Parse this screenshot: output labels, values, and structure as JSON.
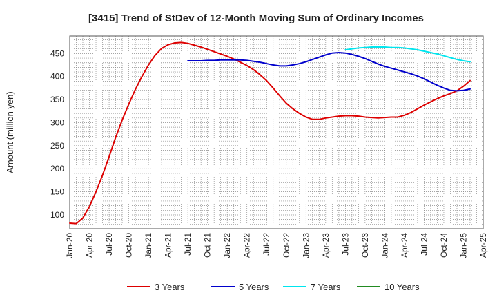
{
  "chart_data": {
    "type": "line",
    "title": "[3415]  Trend of StDev of 12-Month Moving Sum of Ordinary Incomes",
    "ylabel": "Amount (million yen)",
    "xlabel": "",
    "ylim": [
      70,
      488
    ],
    "yticks": [
      100,
      150,
      200,
      250,
      300,
      350,
      400,
      450
    ],
    "xticks": [
      "Jan-20",
      "Apr-20",
      "Jul-20",
      "Oct-20",
      "Jan-21",
      "Apr-21",
      "Jul-21",
      "Oct-21",
      "Jan-22",
      "Apr-22",
      "Jul-22",
      "Oct-22",
      "Jan-23",
      "Apr-23",
      "Jul-23",
      "Oct-23",
      "Jan-24",
      "Apr-24",
      "Jul-24",
      "Oct-24",
      "Jan-25",
      "Apr-25"
    ],
    "grid": true,
    "legend_position": "bottom",
    "series": [
      {
        "name": "3 Years",
        "color": "#dd0000",
        "points": [
          [
            "2020-01",
            82
          ],
          [
            "2020-02",
            81
          ],
          [
            "2020-03",
            93
          ],
          [
            "2020-04",
            118
          ],
          [
            "2020-05",
            150
          ],
          [
            "2020-06",
            186
          ],
          [
            "2020-07",
            226
          ],
          [
            "2020-08",
            268
          ],
          [
            "2020-09",
            306
          ],
          [
            "2020-10",
            340
          ],
          [
            "2020-11",
            372
          ],
          [
            "2020-12",
            400
          ],
          [
            "2021-01",
            425
          ],
          [
            "2021-02",
            446
          ],
          [
            "2021-03",
            461
          ],
          [
            "2021-04",
            469
          ],
          [
            "2021-05",
            473
          ],
          [
            "2021-06",
            474
          ],
          [
            "2021-07",
            472
          ],
          [
            "2021-08",
            468
          ],
          [
            "2021-09",
            464
          ],
          [
            "2021-10",
            459
          ],
          [
            "2021-11",
            454
          ],
          [
            "2021-12",
            449
          ],
          [
            "2022-01",
            444
          ],
          [
            "2022-02",
            438
          ],
          [
            "2022-03",
            431
          ],
          [
            "2022-04",
            424
          ],
          [
            "2022-05",
            415
          ],
          [
            "2022-06",
            404
          ],
          [
            "2022-07",
            391
          ],
          [
            "2022-08",
            375
          ],
          [
            "2022-09",
            358
          ],
          [
            "2022-10",
            342
          ],
          [
            "2022-11",
            330
          ],
          [
            "2022-12",
            320
          ],
          [
            "2023-01",
            312
          ],
          [
            "2023-02",
            307
          ],
          [
            "2023-03",
            307
          ],
          [
            "2023-04",
            310
          ],
          [
            "2023-05",
            312
          ],
          [
            "2023-06",
            314
          ],
          [
            "2023-07",
            315
          ],
          [
            "2023-08",
            315
          ],
          [
            "2023-09",
            314
          ],
          [
            "2023-10",
            312
          ],
          [
            "2023-11",
            311
          ],
          [
            "2023-12",
            310
          ],
          [
            "2024-01",
            311
          ],
          [
            "2024-02",
            312
          ],
          [
            "2024-03",
            312
          ],
          [
            "2024-04",
            316
          ],
          [
            "2024-05",
            322
          ],
          [
            "2024-06",
            330
          ],
          [
            "2024-07",
            338
          ],
          [
            "2024-08",
            345
          ],
          [
            "2024-09",
            352
          ],
          [
            "2024-10",
            358
          ],
          [
            "2024-11",
            363
          ],
          [
            "2024-12",
            369
          ],
          [
            "2025-01",
            379
          ],
          [
            "2025-02",
            391
          ]
        ]
      },
      {
        "name": "5 Years",
        "color": "#0000cc",
        "points": [
          [
            "2021-07",
            434
          ],
          [
            "2021-08",
            434
          ],
          [
            "2021-09",
            434
          ],
          [
            "2021-10",
            435
          ],
          [
            "2021-11",
            435
          ],
          [
            "2021-12",
            436
          ],
          [
            "2022-01",
            436
          ],
          [
            "2022-02",
            436
          ],
          [
            "2022-03",
            436
          ],
          [
            "2022-04",
            435
          ],
          [
            "2022-05",
            433
          ],
          [
            "2022-06",
            431
          ],
          [
            "2022-07",
            428
          ],
          [
            "2022-08",
            425
          ],
          [
            "2022-09",
            423
          ],
          [
            "2022-10",
            423
          ],
          [
            "2022-11",
            425
          ],
          [
            "2022-12",
            428
          ],
          [
            "2023-01",
            432
          ],
          [
            "2023-02",
            437
          ],
          [
            "2023-03",
            442
          ],
          [
            "2023-04",
            447
          ],
          [
            "2023-05",
            451
          ],
          [
            "2023-06",
            452
          ],
          [
            "2023-07",
            451
          ],
          [
            "2023-08",
            448
          ],
          [
            "2023-09",
            444
          ],
          [
            "2023-10",
            439
          ],
          [
            "2023-11",
            433
          ],
          [
            "2023-12",
            427
          ],
          [
            "2024-01",
            422
          ],
          [
            "2024-02",
            418
          ],
          [
            "2024-03",
            414
          ],
          [
            "2024-04",
            410
          ],
          [
            "2024-05",
            406
          ],
          [
            "2024-06",
            401
          ],
          [
            "2024-07",
            395
          ],
          [
            "2024-08",
            388
          ],
          [
            "2024-09",
            381
          ],
          [
            "2024-10",
            375
          ],
          [
            "2024-11",
            370
          ],
          [
            "2024-12",
            369
          ],
          [
            "2025-01",
            370
          ],
          [
            "2025-02",
            373
          ]
        ]
      },
      {
        "name": "7 Years",
        "color": "#00e5ee",
        "points": [
          [
            "2023-07",
            458
          ],
          [
            "2023-08",
            460
          ],
          [
            "2023-09",
            462
          ],
          [
            "2023-10",
            463
          ],
          [
            "2023-11",
            464
          ],
          [
            "2023-12",
            464
          ],
          [
            "2024-01",
            464
          ],
          [
            "2024-02",
            463
          ],
          [
            "2024-03",
            463
          ],
          [
            "2024-04",
            462
          ],
          [
            "2024-05",
            460
          ],
          [
            "2024-06",
            458
          ],
          [
            "2024-07",
            455
          ],
          [
            "2024-08",
            452
          ],
          [
            "2024-09",
            449
          ],
          [
            "2024-10",
            445
          ],
          [
            "2024-11",
            441
          ],
          [
            "2024-12",
            437
          ],
          [
            "2025-01",
            434
          ],
          [
            "2025-02",
            432
          ]
        ]
      },
      {
        "name": "10 Years",
        "color": "#228b22",
        "points": []
      }
    ]
  }
}
